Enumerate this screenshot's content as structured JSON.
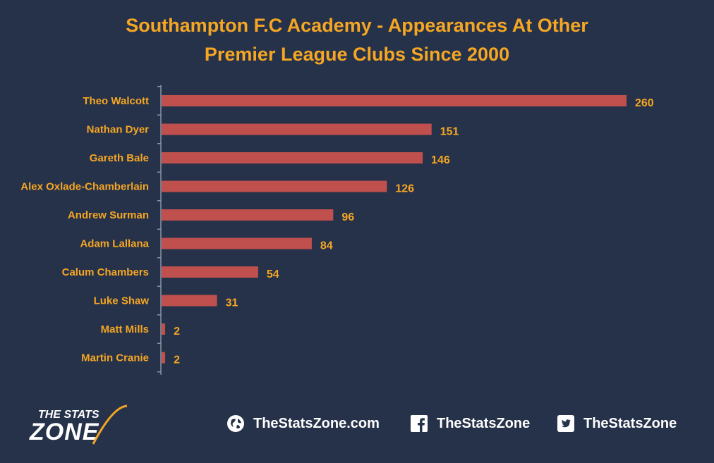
{
  "title_lines": [
    "Southampton  F.C Academy - Appearances At Other",
    "Premier League Clubs Since 2000"
  ],
  "chart_data": {
    "type": "bar",
    "orientation": "horizontal",
    "title": "Southampton  F.C Academy - Appearances At Other Premier League Clubs Since 2000",
    "categories": [
      "Theo Walcott",
      "Nathan Dyer",
      "Gareth Bale",
      "Alex Oxlade-Chamberlain",
      "Andrew Surman",
      "Adam Lallana",
      "Calum Chambers",
      "Luke Shaw",
      "Matt Mills",
      "Martin Cranie"
    ],
    "values": [
      260,
      151,
      146,
      126,
      96,
      84,
      54,
      31,
      2,
      2
    ],
    "xlim": [
      0,
      260
    ],
    "grid": false,
    "data_labels": true,
    "bar_color": "#c0504d",
    "label_color": "#f5a623"
  },
  "logo": {
    "line1": "THE STATS",
    "line2": "ZONE"
  },
  "footer": {
    "website": "TheStatsZone.com",
    "facebook": "TheStatsZone",
    "twitter": "TheStatsZone"
  },
  "colors": {
    "background": "#26324a",
    "accent": "#f5a623",
    "text": "#ffffff"
  }
}
